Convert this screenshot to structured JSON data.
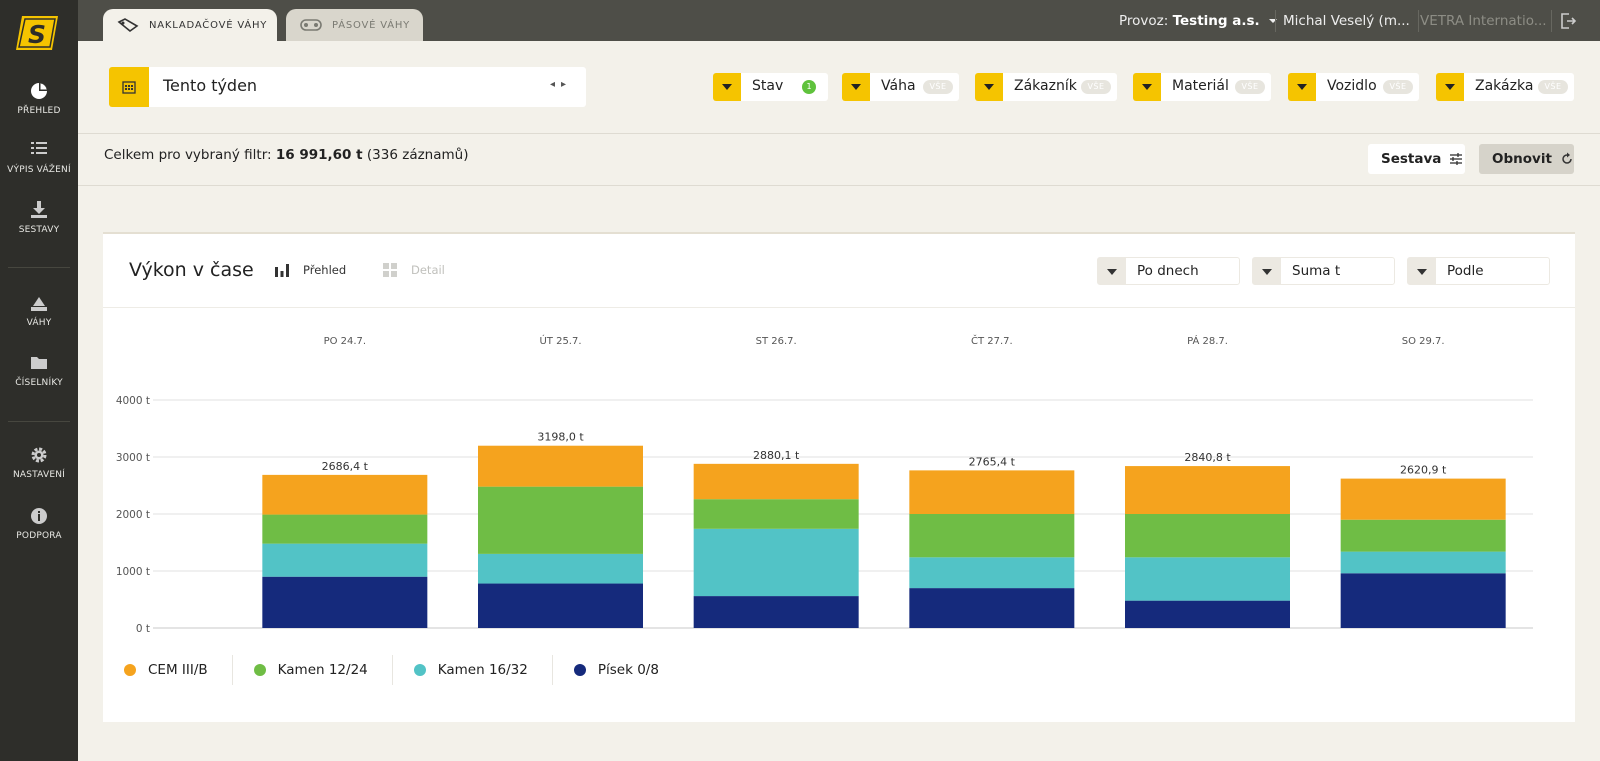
{
  "sidebar": {
    "logo_letter": "S",
    "items": [
      {
        "label": "PŘEHLED",
        "icon": "pie-chart-icon"
      },
      {
        "label": "VÝPIS VÁŽENÍ",
        "icon": "list-icon"
      },
      {
        "label": "SESTAVY",
        "icon": "download-icon"
      },
      {
        "label": "VÁHY",
        "icon": "scale-icon"
      },
      {
        "label": "ČÍSELNÍKY",
        "icon": "folder-icon"
      },
      {
        "label": "NASTAVENÍ",
        "icon": "gear-icon"
      },
      {
        "label": "PODPORA",
        "icon": "info-icon"
      }
    ]
  },
  "topbar": {
    "tabs": [
      {
        "label": "NAKLADAČOVÉ VÁHY",
        "icon": "loader-icon",
        "active": true
      },
      {
        "label": "PÁSOVÉ VÁHY",
        "icon": "conveyor-icon",
        "active": false
      }
    ],
    "provoz_label": "Provoz:",
    "provoz_value": "Testing a.s.",
    "user": "Michal Veselý (m...",
    "company": "VETRA Internatio...",
    "logout_icon": "logout-icon"
  },
  "filters": {
    "date_range": "Tento týden",
    "items": [
      {
        "label": "Stav",
        "badge": "1"
      },
      {
        "label": "Váha",
        "badge": "VŠE"
      },
      {
        "label": "Zákazník",
        "badge": "VŠE"
      },
      {
        "label": "Materiál",
        "badge": "VŠE"
      },
      {
        "label": "Vozidlo",
        "badge": "VŠE"
      },
      {
        "label": "Zakázka",
        "badge": "VŠE"
      }
    ]
  },
  "summary": {
    "prefix": "Celkem pro vybraný filtr:",
    "total": "16 991,60 t",
    "records": "(336 záznamů)"
  },
  "actions": {
    "sestava": "Sestava",
    "obnovit": "Obnovit"
  },
  "card": {
    "title": "Výkon v čase",
    "view_overview": "Přehled",
    "view_detail": "Detail",
    "selects": [
      "Po dnech",
      "Suma t",
      "Podle"
    ]
  },
  "colors": {
    "accent": "#f5c400",
    "sidebar": "#2e2e2a",
    "topbar": "#4e4e48"
  },
  "chart_data": {
    "type": "bar",
    "stacked": true,
    "categories": [
      "PO 24.7.",
      "ÚT 25.7.",
      "ST 26.7.",
      "ČT 27.7.",
      "PÁ 28.7.",
      "SO 29.7."
    ],
    "totals_labels": [
      "2686,4 t",
      "3198,0 t",
      "2880,1 t",
      "2765,4 t",
      "2840,8 t",
      "2620,9 t"
    ],
    "ylim": [
      0,
      4000
    ],
    "yticks": [
      0,
      1000,
      2000,
      3000,
      4000
    ],
    "ytick_labels": [
      "0 t",
      "1000 t",
      "2000 t",
      "3000 t",
      "4000 t"
    ],
    "grid": true,
    "legend_position": "bottom-left",
    "series": [
      {
        "name": "Písek 0/8",
        "color": "#152a7c",
        "values": [
          900,
          780,
          560,
          700,
          480,
          960
        ]
      },
      {
        "name": "Kamen 16/32",
        "color": "#52c3c6",
        "values": [
          580,
          520,
          1180,
          540,
          760,
          380
        ]
      },
      {
        "name": "Kamen 12/24",
        "color": "#6fbd45",
        "values": [
          510,
          1180,
          520,
          760,
          760,
          560
        ]
      },
      {
        "name": "CEM III/B",
        "color": "#f5a31e",
        "values": [
          696.4,
          718.0,
          620.1,
          765.4,
          840.8,
          720.9
        ]
      }
    ],
    "legend_order": [
      "CEM III/B",
      "Kamen 12/24",
      "Kamen 16/32",
      "Písek 0/8"
    ]
  }
}
